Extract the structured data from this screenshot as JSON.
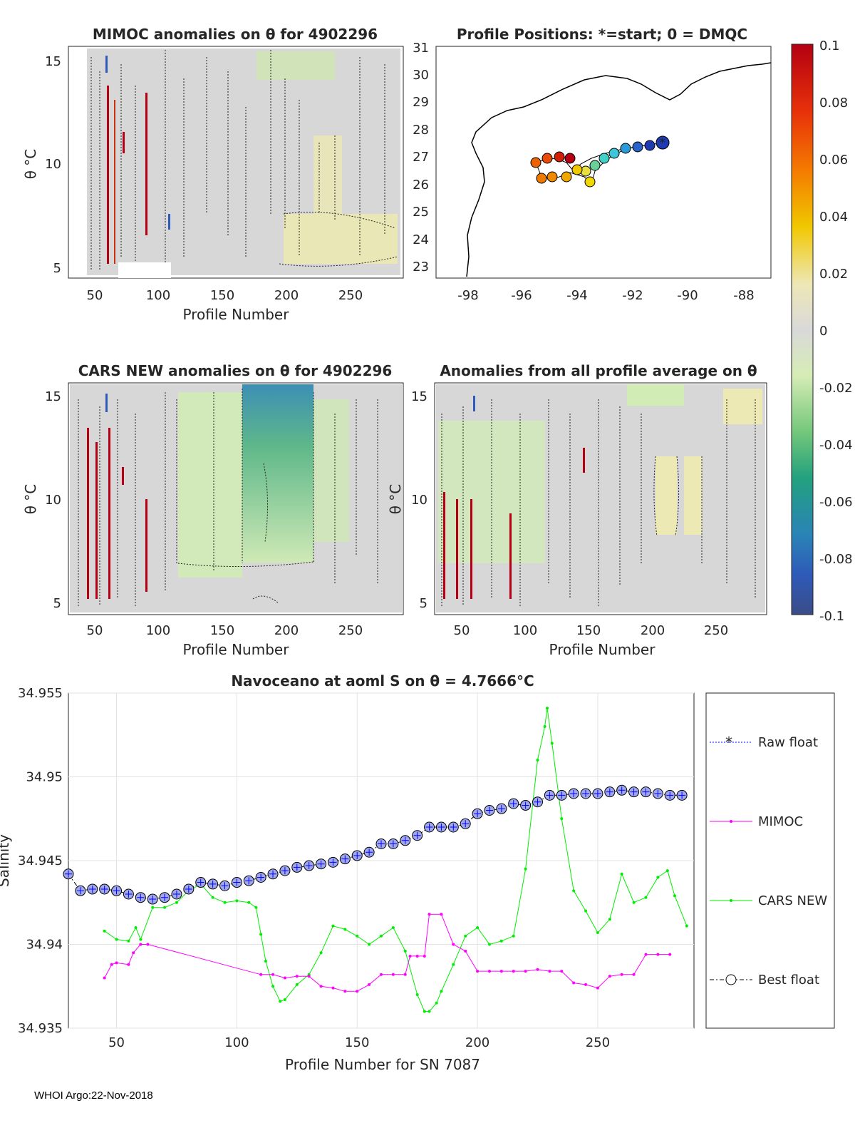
{
  "footer": "WHOI Argo:22-Nov-2018",
  "colors": {
    "raw": "#0000ff",
    "mimoc": "#ff00ff",
    "cars": "#00ee00",
    "best": "#000000",
    "marker_fill": "#a0a8e8",
    "bg_gray": "#d7d7d7"
  },
  "panels": {
    "mimoc": {
      "title": "MIMOC anomalies on θ  for 4902296",
      "xlabel": "Profile Number",
      "ylabel": "θ °C",
      "xticks": [
        "50",
        "100",
        "150",
        "200",
        "250"
      ],
      "yticks": [
        "5",
        "10",
        "15"
      ]
    },
    "cars": {
      "title": "CARS NEW anomalies on θ for 4902296",
      "xlabel": "Profile Number",
      "ylabel": "θ °C",
      "xticks": [
        "50",
        "100",
        "150",
        "200",
        "250"
      ],
      "yticks": [
        "5",
        "10",
        "15"
      ]
    },
    "avg": {
      "title": "Anomalies from all profile average on θ",
      "xlabel": "Profile Number",
      "ylabel": "θ °C",
      "xticks": [
        "50",
        "100",
        "150",
        "200",
        "250"
      ],
      "yticks": [
        "5",
        "10",
        "15"
      ]
    },
    "map": {
      "title": "Profile Positions: *=start; 0 = DMQC",
      "xticks": [
        "-98",
        "-96",
        "-94",
        "-92",
        "-90",
        "-88"
      ],
      "yticks": [
        "23",
        "24",
        "25",
        "26",
        "27",
        "28",
        "29",
        "30",
        "31"
      ]
    }
  },
  "colorbar": {
    "ticks": [
      "0.1",
      "0.08",
      "0.06",
      "0.04",
      "0.02",
      "0",
      "-0.02",
      "-0.04",
      "-0.06",
      "-0.08",
      "-0.1"
    ]
  },
  "chart_data": [
    {
      "type": "line",
      "title": "Navoceano at aoml S on θ = 4.7666°C",
      "xlabel": "Profile Number for SN 7087",
      "ylabel": "Salinity",
      "xlim": [
        30,
        290
      ],
      "ylim": [
        34.935,
        34.955
      ],
      "xticks": [
        "50",
        "100",
        "150",
        "200",
        "250"
      ],
      "yticks": [
        "34.935",
        "34.94",
        "34.945",
        "34.95",
        "34.955"
      ],
      "grid": true,
      "legend": [
        "Raw float",
        "MIMOC",
        "CARS NEW",
        "Best float"
      ],
      "series": [
        {
          "name": "Best float",
          "x": [
            30,
            35,
            40,
            45,
            50,
            55,
            60,
            65,
            70,
            75,
            80,
            85,
            90,
            95,
            100,
            105,
            110,
            115,
            120,
            125,
            130,
            135,
            140,
            145,
            150,
            155,
            160,
            165,
            170,
            175,
            180,
            185,
            190,
            195,
            200,
            205,
            210,
            215,
            220,
            225,
            230,
            235,
            240,
            245,
            250,
            255,
            260,
            265,
            270,
            275,
            280,
            285
          ],
          "values": [
            34.9442,
            34.9432,
            34.9433,
            34.9433,
            34.9432,
            34.943,
            34.9428,
            34.9427,
            34.9428,
            34.943,
            34.9433,
            34.9437,
            34.9436,
            34.9435,
            34.9437,
            34.9438,
            34.944,
            34.9442,
            34.9444,
            34.9446,
            34.9447,
            34.9448,
            34.9449,
            34.9451,
            34.9453,
            34.9455,
            34.946,
            34.946,
            34.9462,
            34.9465,
            34.947,
            34.947,
            34.947,
            34.9472,
            34.9478,
            34.948,
            34.9481,
            34.9484,
            34.9483,
            34.9485,
            34.9489,
            34.9489,
            34.949,
            34.949,
            34.949,
            34.9491,
            34.9492,
            34.9491,
            34.9491,
            34.949,
            34.9489,
            34.9489
          ]
        },
        {
          "name": "MIMOC",
          "x": [
            45,
            48,
            50,
            55,
            57,
            60,
            63,
            110,
            115,
            120,
            125,
            130,
            135,
            140,
            145,
            150,
            155,
            160,
            165,
            170,
            172,
            175,
            178,
            180,
            185,
            190,
            195,
            200,
            205,
            210,
            215,
            220,
            225,
            230,
            235,
            240,
            245,
            250,
            255,
            260,
            265,
            270,
            275,
            280
          ],
          "values": [
            34.938,
            34.9388,
            34.9389,
            34.9388,
            34.9395,
            34.94,
            34.94,
            34.9382,
            34.9382,
            34.938,
            34.9381,
            34.9381,
            34.9375,
            34.9374,
            34.9372,
            34.9372,
            34.9376,
            34.9382,
            34.9382,
            34.9382,
            34.9393,
            34.9393,
            34.9393,
            34.9418,
            34.9418,
            34.94,
            34.9396,
            34.9384,
            34.9384,
            34.9384,
            34.9384,
            34.9384,
            34.9385,
            34.9384,
            34.9384,
            34.9377,
            34.9376,
            34.9374,
            34.9381,
            34.9382,
            34.9382,
            34.9394,
            34.9394,
            34.9394
          ]
        },
        {
          "name": "CARS NEW",
          "x": [
            45,
            50,
            55,
            58,
            60,
            65,
            70,
            75,
            80,
            85,
            90,
            95,
            100,
            105,
            108,
            110,
            112,
            115,
            118,
            120,
            125,
            130,
            135,
            140,
            145,
            150,
            155,
            160,
            165,
            170,
            175,
            178,
            180,
            183,
            185,
            190,
            195,
            200,
            205,
            210,
            215,
            220,
            225,
            228,
            229,
            231,
            235,
            240,
            245,
            250,
            255,
            260,
            265,
            270,
            275,
            279,
            282,
            287
          ],
          "values": [
            34.9408,
            34.9403,
            34.9402,
            34.941,
            34.9403,
            34.9422,
            34.9422,
            34.9425,
            34.9432,
            34.9436,
            34.9428,
            34.9425,
            34.9426,
            34.9425,
            34.9422,
            34.9406,
            34.939,
            34.9375,
            34.9366,
            34.9367,
            34.9376,
            34.9382,
            34.9395,
            34.9411,
            34.9409,
            34.9405,
            34.94,
            34.9405,
            34.941,
            34.9396,
            34.937,
            34.936,
            34.936,
            34.9365,
            34.9372,
            34.9388,
            34.9405,
            34.941,
            34.94,
            34.9402,
            34.9405,
            34.9445,
            34.951,
            34.953,
            34.9541,
            34.952,
            34.9475,
            34.9432,
            34.942,
            34.9407,
            34.9415,
            34.9442,
            34.9425,
            34.9428,
            34.944,
            34.9444,
            34.9429,
            34.9411
          ]
        }
      ]
    }
  ]
}
